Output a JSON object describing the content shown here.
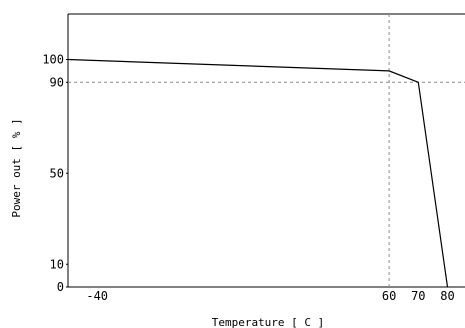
{
  "chart_data": {
    "type": "line",
    "title": "",
    "xlabel": "Temperature [ C ]",
    "ylabel": "Power out [ % ]",
    "xlim": [
      -50,
      86
    ],
    "ylim": [
      0,
      120
    ],
    "x_ticks": [
      -40,
      60,
      70,
      80
    ],
    "y_ticks": [
      0,
      10,
      50,
      90,
      100
    ],
    "grid": false,
    "reference_lines": [
      {
        "axis": "x",
        "value": 60,
        "style": "dashed"
      },
      {
        "axis": "y",
        "value": 90,
        "style": "dashed"
      }
    ],
    "series": [
      {
        "x": [
          -50,
          60,
          70,
          80
        ],
        "y": [
          100,
          95,
          90,
          0
        ]
      }
    ],
    "line_color": "#000000",
    "reference_color": "#8c8c8c"
  }
}
